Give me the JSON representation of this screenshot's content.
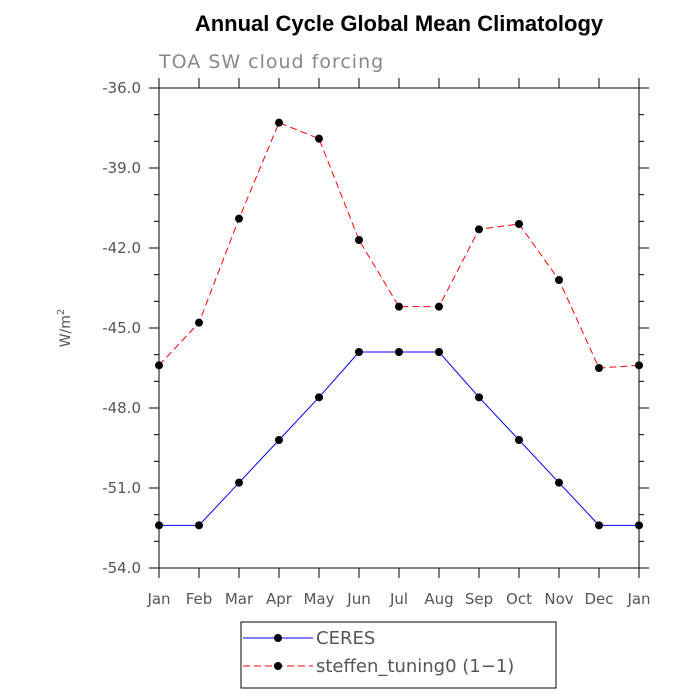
{
  "chart_data": {
    "type": "line",
    "title": "Annual Cycle Global Mean Climatology",
    "subtitle": "TOA SW cloud forcing",
    "ylabel": "W/m",
    "ylabel_superscript": "2",
    "xlabel": "",
    "ylim": [
      -54.0,
      -36.0
    ],
    "yticks": [
      "-36.0",
      "-39.0",
      "-42.0",
      "-45.0",
      "-48.0",
      "-51.0",
      "-54.0"
    ],
    "ytick_values": [
      -36,
      -39,
      -42,
      -45,
      -48,
      -51,
      -54
    ],
    "categories": [
      "Jan",
      "Feb",
      "Mar",
      "Apr",
      "May",
      "Jun",
      "Jul",
      "Aug",
      "Sep",
      "Oct",
      "Nov",
      "Dec",
      "Jan"
    ],
    "grid": false,
    "legend_position": "bottom",
    "series": [
      {
        "name": "CERES",
        "color": "#0000ff",
        "dash": "solid",
        "values": [
          -52.4,
          -52.4,
          -50.8,
          -49.2,
          -47.6,
          -45.9,
          -45.9,
          -45.9,
          -47.6,
          -49.2,
          -50.8,
          -52.4,
          -52.4
        ]
      },
      {
        "name": "steffen_tuning0 (1−1)",
        "color": "#ff0000",
        "dash": "dashed",
        "values": [
          -46.4,
          -44.8,
          -40.9,
          -37.3,
          -37.9,
          -41.7,
          -44.2,
          -44.2,
          -41.3,
          -41.1,
          -43.2,
          -46.5,
          -46.4
        ]
      }
    ]
  }
}
